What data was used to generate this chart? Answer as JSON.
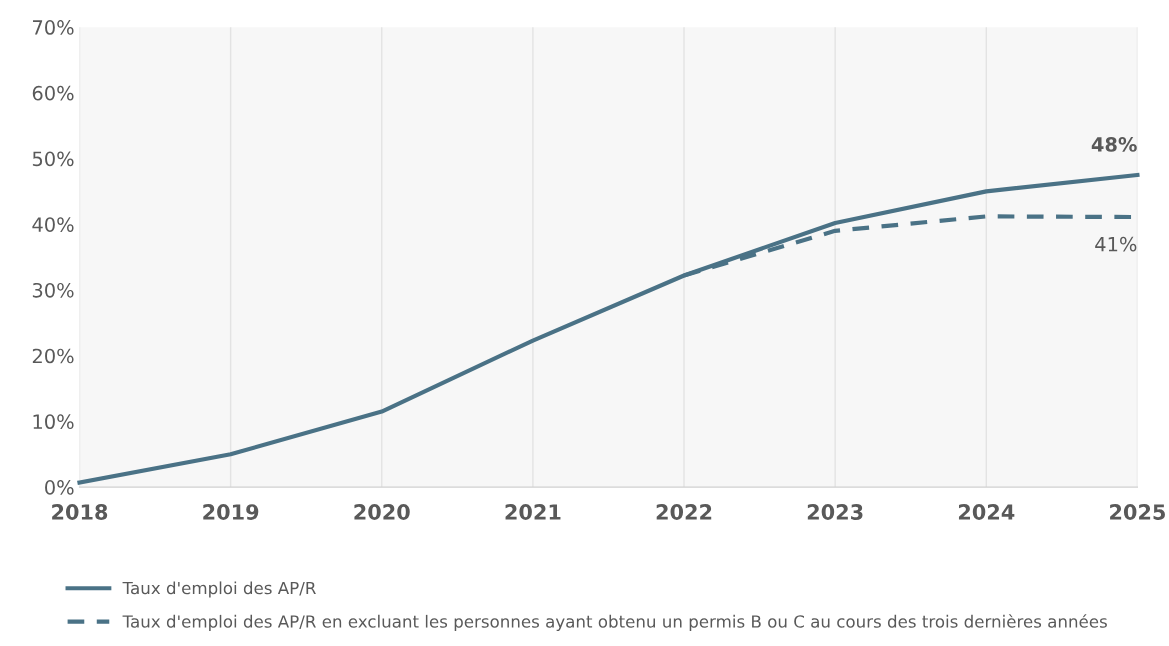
{
  "chart_data": {
    "type": "line",
    "x": [
      2018,
      2019,
      2020,
      2021,
      2022,
      2023,
      2024,
      2025
    ],
    "series": [
      {
        "name": "Taux d'emploi des AP/R",
        "color": "#4a7286",
        "line_style": "solid",
        "values": [
          0.7,
          5,
          11.5,
          22.3,
          32.2,
          40.2,
          45,
          47.5
        ],
        "value_labels": [
          null,
          null,
          null,
          null,
          null,
          null,
          null,
          "48%"
        ]
      },
      {
        "name": "Taux d'emploi des AP/R en excluant les personnes ayant obtenu un permis B ou C au cours des trois dernières années",
        "color": "#4a7286",
        "line_style": "dashed",
        "values": [
          null,
          null,
          null,
          null,
          32.2,
          39,
          41.2,
          41.1
        ],
        "value_labels": [
          null,
          null,
          null,
          null,
          null,
          null,
          null,
          "41%"
        ]
      }
    ],
    "xlim": [
      2018,
      2025
    ],
    "xticks": [
      2018,
      2019,
      2020,
      2021,
      2022,
      2023,
      2024,
      2025
    ],
    "ylim": [
      0,
      70
    ],
    "yticks": [
      {
        "value": 0,
        "label": "0%"
      },
      {
        "value": 10,
        "label": "10%"
      },
      {
        "value": 20,
        "label": "20%"
      },
      {
        "value": 30,
        "label": "30%"
      },
      {
        "value": 40,
        "label": "40%"
      },
      {
        "value": 50,
        "label": "50%"
      },
      {
        "value": 60,
        "label": "60%"
      },
      {
        "value": 70,
        "label": "70%"
      }
    ],
    "grid": "x",
    "legend": "bottom",
    "marker": "none"
  }
}
